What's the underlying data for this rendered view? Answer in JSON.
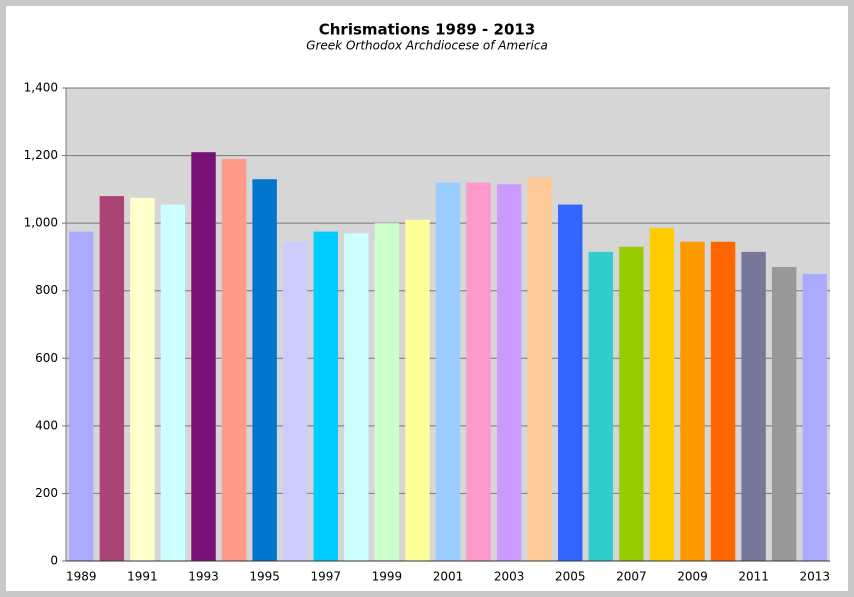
{
  "chart_data": {
    "type": "bar",
    "title": "Chrismations 1989 - 2013",
    "subtitle": "Greek Orthodox Archdiocese of America",
    "categories": [
      "1989",
      null,
      "1991",
      null,
      "1993",
      null,
      "1995",
      null,
      "1997",
      null,
      "1999",
      null,
      "2001",
      null,
      "2003",
      null,
      "2005",
      null,
      "2007",
      null,
      "2009",
      null,
      "2011",
      null,
      "2013"
    ],
    "values": [
      975,
      1080,
      1075,
      1055,
      1210,
      1190,
      1130,
      945,
      975,
      970,
      1000,
      1010,
      1120,
      1120,
      1115,
      1135,
      1055,
      915,
      930,
      985,
      945,
      945,
      915,
      870,
      850
    ],
    "colors": [
      "#aaaaff",
      "#aa4477",
      "#ffffcc",
      "#ccffff",
      "#771177",
      "#ff9988",
      "#0077cc",
      "#ccccff",
      "#00ccff",
      "#ccffff",
      "#ccffcc",
      "#ffff99",
      "#99ccff",
      "#ff99cc",
      "#cc99ff",
      "#ffcc99",
      "#3366ff",
      "#33cccc",
      "#99cc00",
      "#ffcc00",
      "#ff9900",
      "#ff6600",
      "#777799",
      "#999999",
      "#aaaaff"
    ],
    "ylim": [
      0,
      1400
    ],
    "yticks": [
      0,
      200,
      400,
      600,
      800,
      {
        "value": 1000,
        "label": "1,000"
      },
      {
        "value": 1200,
        "label": "1,200"
      },
      {
        "value": 1400,
        "label": "1,400"
      }
    ],
    "grid": true
  }
}
